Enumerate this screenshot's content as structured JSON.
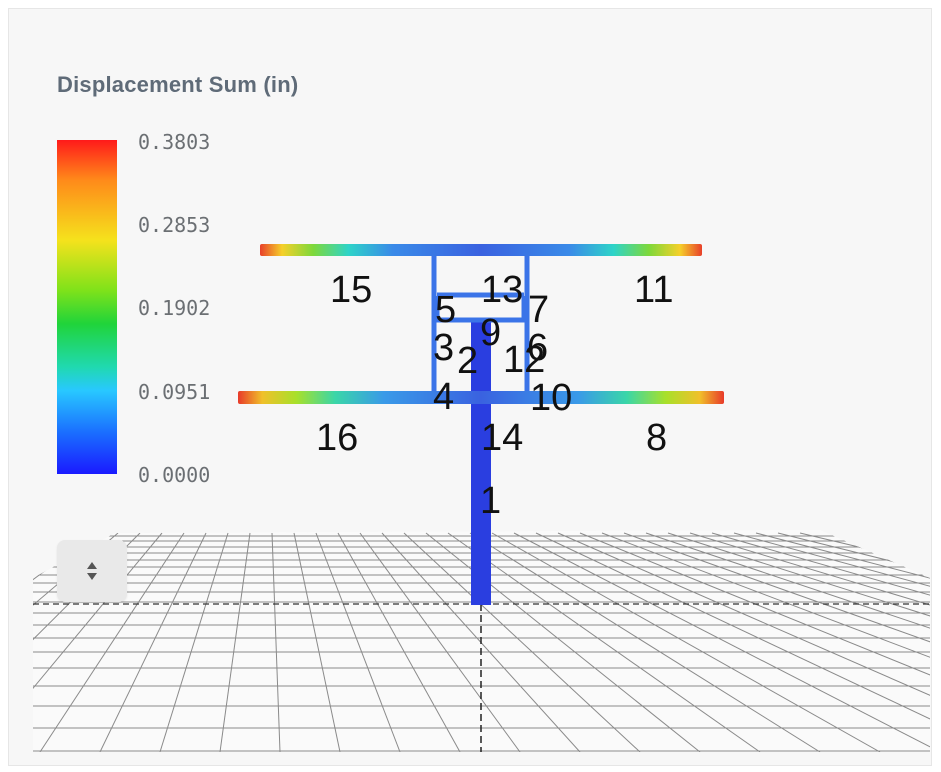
{
  "legend": {
    "title": "Displacement Sum (in)",
    "ticks": [
      "0.3803",
      "0.2853",
      "0.1902",
      "0.0951",
      "0.0000"
    ]
  },
  "controls": {
    "toggle_icon": "up-down-arrows-icon"
  },
  "model": {
    "member_labels": [
      "1",
      "2",
      "3",
      "4",
      "5",
      "6",
      "7",
      "8",
      "9",
      "10",
      "11",
      "12",
      "13",
      "14",
      "15",
      "16"
    ]
  },
  "colors": {
    "legend_top": "#ff1a1a",
    "legend_bottom": "#1a1aff",
    "member_blue": "#2a3ee0",
    "frame_blue": "#3b74e8",
    "grid": "#8a8a8a"
  }
}
